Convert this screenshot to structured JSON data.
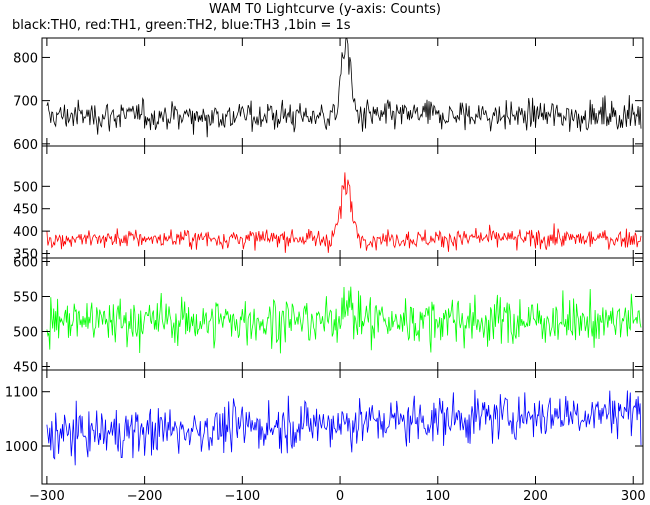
{
  "header": {
    "title": "WAM T0 Lightcurve (y-axis: Counts)",
    "subtitle": "black:TH0, red:TH1, green:TH2, blue:TH3 ,1bin = 1s"
  },
  "chart_data": {
    "type": "line",
    "x_ticks": [
      -300,
      -200,
      -100,
      0,
      100,
      200,
      300
    ],
    "xlim": [
      -305,
      310
    ],
    "panels": [
      {
        "name": "TH0",
        "color": "#000000",
        "ylim": [
          595,
          845
        ],
        "yticks": [
          600,
          700,
          800
        ],
        "baseline": 665,
        "noise": 22,
        "peak": 175,
        "peak_width": 6
      },
      {
        "name": "TH1",
        "color": "#ff0000",
        "ylim": [
          340,
          590
        ],
        "yticks": [
          350,
          400,
          450,
          500
        ],
        "baseline": 383,
        "noise": 14,
        "peak": 120,
        "peak_width": 8
      },
      {
        "name": "TH2",
        "color": "#00ff00",
        "ylim": [
          445,
          605
        ],
        "yticks": [
          450,
          500,
          550,
          600
        ],
        "baseline": 515,
        "noise": 22,
        "peak": 40,
        "peak_width": 5
      },
      {
        "name": "TH3",
        "color": "#0000ff",
        "ylim": [
          930,
          1140
        ],
        "yticks": [
          1000,
          1100
        ],
        "baseline": 1020,
        "noise": 28,
        "peak": 0,
        "peak_width": 5,
        "trend": 45
      }
    ]
  }
}
